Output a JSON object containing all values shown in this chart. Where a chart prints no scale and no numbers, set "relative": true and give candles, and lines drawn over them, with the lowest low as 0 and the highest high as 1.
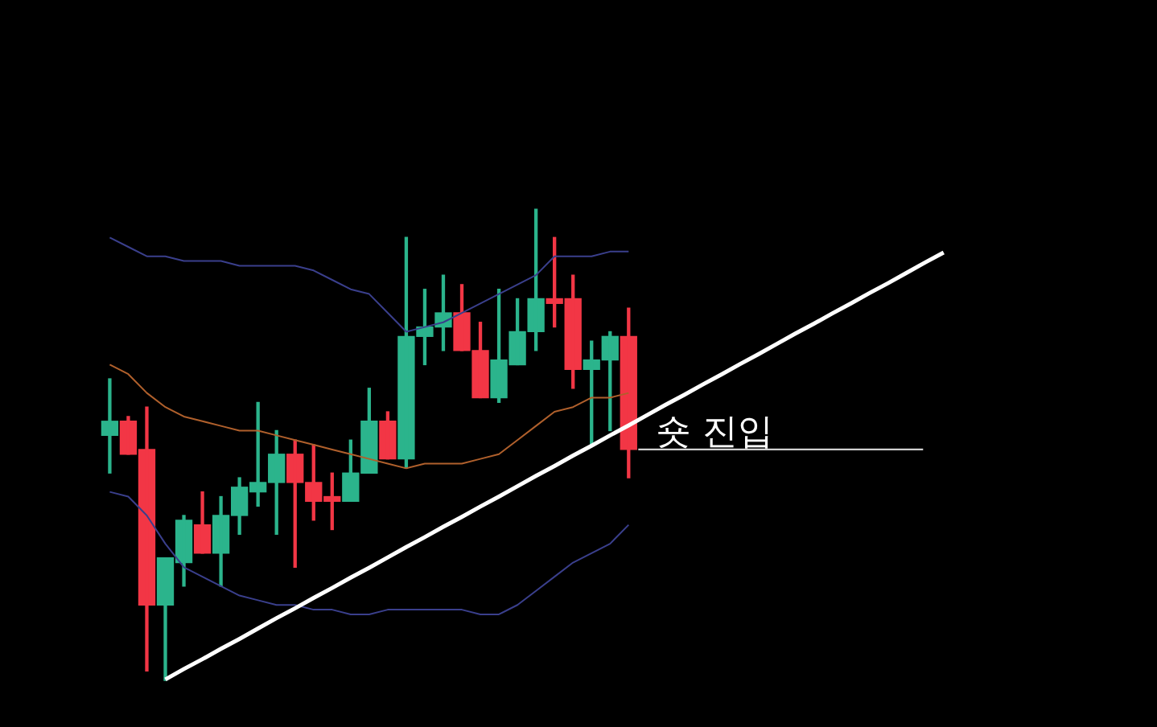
{
  "chart_data": {
    "type": "candlestick",
    "relative": true,
    "legend": false,
    "categories": [
      null,
      null,
      null,
      null,
      null,
      null,
      null,
      null,
      null,
      null,
      null,
      null,
      null,
      null,
      null,
      null,
      null,
      null,
      null,
      null,
      null,
      null,
      null,
      null,
      null,
      null,
      null,
      null,
      null,
      null,
      null,
      null,
      null,
      null,
      null,
      null,
      null,
      null,
      null,
      null,
      null,
      null,
      null,
      null,
      null,
      null
    ],
    "ohlc": [
      [
        0.52,
        0.64,
        0.44,
        0.55
      ],
      [
        0.55,
        0.56,
        0.48,
        0.48
      ],
      [
        0.49,
        0.58,
        0.02,
        0.16
      ],
      [
        0.16,
        0.26,
        0,
        0.26
      ],
      [
        0.25,
        0.35,
        0.2,
        0.34
      ],
      [
        0.33,
        0.4,
        0.27,
        0.27
      ],
      [
        0.27,
        0.39,
        0.2,
        0.35
      ],
      [
        0.35,
        0.43,
        0.31,
        0.41
      ],
      [
        0.4,
        0.59,
        0.37,
        0.42
      ],
      [
        0.42,
        0.53,
        0.31,
        0.48
      ],
      [
        0.48,
        0.51,
        0.24,
        0.42
      ],
      [
        0.42,
        0.5,
        0.34,
        0.38
      ],
      [
        0.39,
        0.44,
        0.32,
        0.38
      ],
      [
        0.38,
        0.51,
        0.38,
        0.44
      ],
      [
        0.44,
        0.62,
        0.44,
        0.55
      ],
      [
        0.55,
        0.57,
        0.47,
        0.47
      ],
      [
        0.47,
        0.94,
        0.45,
        0.73
      ],
      [
        0.73,
        0.83,
        0.67,
        0.75
      ],
      [
        0.75,
        0.86,
        0.7,
        0.78
      ],
      [
        0.78,
        0.84,
        0.7,
        0.7
      ],
      [
        0.7,
        0.76,
        0.6,
        0.6
      ],
      [
        0.6,
        0.83,
        0.59,
        0.68
      ],
      [
        0.67,
        0.81,
        0.67,
        0.74
      ],
      [
        0.74,
        1,
        0.7,
        0.81
      ],
      [
        0.81,
        0.94,
        0.75,
        0.8
      ],
      [
        0.81,
        0.86,
        0.62,
        0.66
      ],
      [
        0.66,
        0.72,
        0.5,
        0.68
      ],
      [
        0.68,
        0.74,
        0.53,
        0.73
      ],
      [
        0.73,
        0.79,
        0.43,
        0.49
      ],
      null,
      null,
      null,
      null,
      null,
      null,
      null,
      null,
      null,
      null,
      null,
      null,
      null,
      null,
      null,
      null,
      null
    ],
    "colors": [
      "#2bb48c",
      "#f23645",
      "#f23645",
      "#2bb48c",
      "#2bb48c",
      "#f23645",
      "#2bb48c",
      "#2bb48c",
      "#2bb48c",
      "#2bb48c",
      "#f23645",
      "#f23645",
      "#f23645",
      "#2bb48c",
      "#2bb48c",
      "#f23645",
      "#2bb48c",
      "#2bb48c",
      "#2bb48c",
      "#f23645",
      "#f23645",
      "#2bb48c",
      "#2bb48c",
      "#2bb48c",
      "#f23645",
      "#f23645",
      "#2bb48c",
      "#2bb48c",
      "#f23645",
      null,
      null,
      null,
      null,
      null,
      null,
      null,
      null,
      null,
      null,
      null,
      null,
      null,
      null,
      null,
      null,
      null
    ],
    "series": [
      {
        "type": "line",
        "color": "#3a3f8c",
        "values": [
          0.94,
          0.92,
          0.9,
          0.9,
          0.89,
          0.89,
          0.89,
          0.88,
          0.88,
          0.88,
          0.88,
          0.87,
          0.85,
          0.83,
          0.82,
          0.78,
          0.74,
          0.75,
          0.76,
          0.78,
          0.8,
          0.82,
          0.84,
          0.86,
          0.9,
          0.9,
          0.9,
          0.91,
          0.91,
          null,
          null,
          null,
          null,
          null,
          null,
          null,
          null,
          null,
          null,
          null,
          null,
          null,
          null,
          null,
          null,
          null
        ]
      },
      {
        "type": "line",
        "color": "#b0602c",
        "values": [
          0.67,
          0.65,
          0.61,
          0.58,
          0.56,
          0.55,
          0.54,
          0.53,
          0.53,
          0.52,
          0.51,
          0.5,
          0.49,
          0.48,
          0.47,
          0.46,
          0.45,
          0.46,
          0.46,
          0.46,
          0.47,
          0.48,
          0.51,
          0.54,
          0.57,
          0.58,
          0.6,
          0.6,
          0.61,
          null,
          null,
          null,
          null,
          null,
          null,
          null,
          null,
          null,
          null,
          null,
          null,
          null,
          null,
          null,
          null,
          null
        ]
      },
      {
        "type": "line",
        "color": "#3a3f8c",
        "values": [
          0.4,
          0.39,
          0.35,
          0.29,
          0.24,
          0.22,
          0.2,
          0.18,
          0.17,
          0.16,
          0.16,
          0.15,
          0.15,
          0.14,
          0.14,
          0.15,
          0.15,
          0.15,
          0.15,
          0.15,
          0.14,
          0.14,
          0.16,
          0.19,
          0.22,
          0.25,
          0.27,
          0.29,
          0.33,
          null,
          null,
          null,
          null,
          null,
          null,
          null,
          null,
          null,
          null,
          null,
          null,
          null,
          null,
          null,
          null,
          null
        ]
      },
      {
        "type": "line",
        "color": "#ffffff",
        "values": [
          null,
          null,
          null,
          0.002,
          0.024,
          0.045,
          0.067,
          0.088,
          0.11,
          0.132,
          0.153,
          0.175,
          0.196,
          0.218,
          0.239,
          0.261,
          0.283,
          0.304,
          0.326,
          0.347,
          0.369,
          0.39,
          0.412,
          0.434,
          0.455,
          0.477,
          0.498,
          0.52,
          0.541,
          0.563,
          0.585,
          0.606,
          0.628,
          0.649,
          0.671,
          0.692,
          0.714,
          0.736,
          0.757,
          0.779,
          0.8,
          0.822,
          0.843,
          0.865,
          0.887,
          0.908
        ]
      }
    ],
    "annotations": [
      "숏 진입"
    ]
  }
}
